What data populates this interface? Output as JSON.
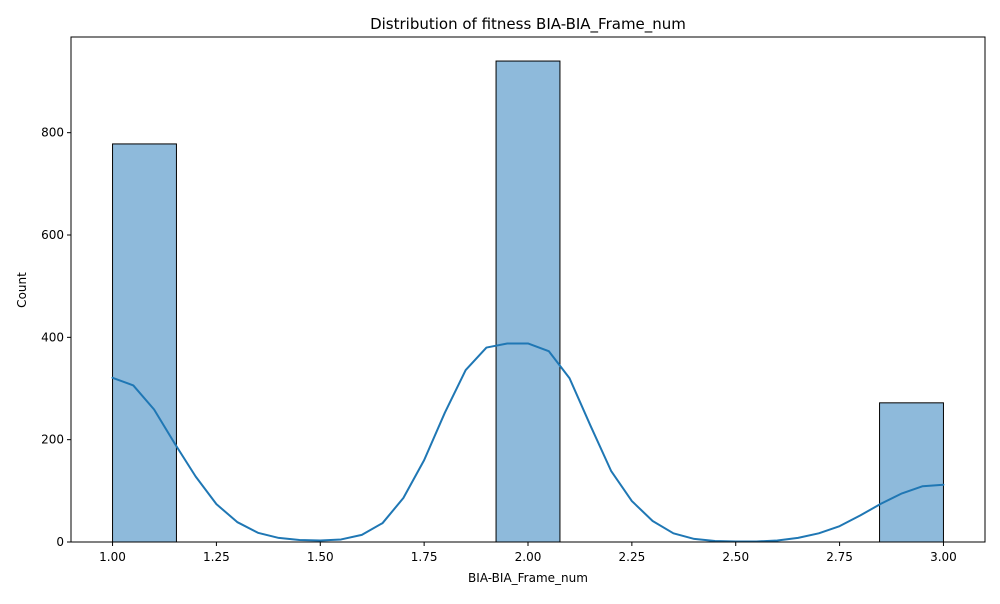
{
  "chart_data": {
    "type": "bar",
    "title": "Distribution of fitness BIA-BIA_Frame_num",
    "xlabel": "BIA-BIA_Frame_num",
    "ylabel": "Count",
    "xlim": [
      0.9,
      3.1
    ],
    "ylim": [
      0,
      987
    ],
    "x_ticks": [
      1.0,
      1.25,
      1.5,
      1.75,
      2.0,
      2.25,
      2.5,
      2.75,
      3.0
    ],
    "x_tick_labels": [
      "1.00",
      "1.25",
      "1.50",
      "1.75",
      "2.00",
      "2.25",
      "2.50",
      "2.75",
      "3.00"
    ],
    "y_ticks": [
      0,
      200,
      400,
      600,
      800
    ],
    "y_tick_labels": [
      "0",
      "200",
      "400",
      "600",
      "800"
    ],
    "grid": false,
    "legend": "none",
    "histogram": {
      "bin_width": 0.1538,
      "bins": [
        {
          "x0": 1.0,
          "x1": 1.1538,
          "count": 778
        },
        {
          "x0": 1.9231,
          "x1": 2.0769,
          "count": 940
        },
        {
          "x0": 2.8462,
          "x1": 3.0,
          "count": 272
        }
      ],
      "bar_color": "#8ebadb",
      "edge_color": "#000000"
    },
    "kde": {
      "color": "#1f77b4",
      "x": [
        1.0,
        1.05,
        1.1,
        1.15,
        1.2,
        1.25,
        1.3,
        1.35,
        1.4,
        1.45,
        1.5,
        1.55,
        1.6,
        1.65,
        1.7,
        1.75,
        1.8,
        1.85,
        1.9,
        1.95,
        2.0,
        2.05,
        2.1,
        2.15,
        2.2,
        2.25,
        2.3,
        2.35,
        2.4,
        2.45,
        2.5,
        2.55,
        2.6,
        2.65,
        2.7,
        2.75,
        2.8,
        2.85,
        2.9,
        2.95,
        3.0
      ],
      "y": [
        321,
        306,
        259,
        192,
        128,
        74,
        39,
        18,
        8,
        4,
        3,
        5,
        14,
        37,
        86,
        160,
        253,
        336,
        380,
        388,
        388,
        373,
        320,
        228,
        139,
        80,
        41,
        17,
        6,
        2,
        1,
        1,
        3,
        8,
        17,
        31,
        52,
        75,
        95,
        109,
        112
      ]
    }
  }
}
